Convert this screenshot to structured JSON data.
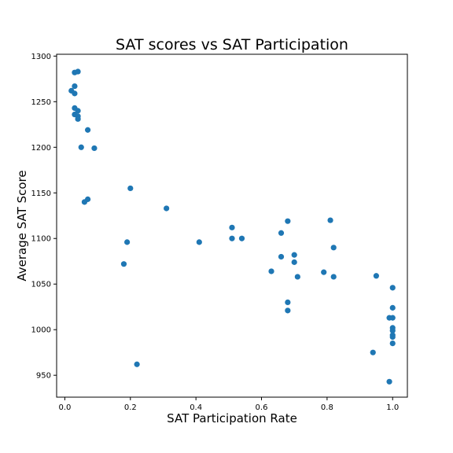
{
  "chart_data": {
    "type": "scatter",
    "title": "SAT scores vs SAT Participation",
    "xlabel": "SAT Participation Rate",
    "ylabel": "Average SAT Score",
    "xlim": [
      -0.025,
      1.045
    ],
    "ylim": [
      926,
      1302
    ],
    "xticks": [
      "0.0",
      "0.2",
      "0.4",
      "0.6",
      "0.8",
      "1.0"
    ],
    "xtick_values": [
      0.0,
      0.2,
      0.4,
      0.6,
      0.8,
      1.0
    ],
    "yticks": [
      "950",
      "1000",
      "1050",
      "1100",
      "1150",
      "1200",
      "1250",
      "1300"
    ],
    "ytick_values": [
      950,
      1000,
      1050,
      1100,
      1150,
      1200,
      1250,
      1300
    ],
    "grid": false,
    "series": [
      {
        "color": "#1f77b4",
        "points": [
          [
            0.03,
            1282
          ],
          [
            0.04,
            1283
          ],
          [
            0.02,
            1262
          ],
          [
            0.03,
            1267
          ],
          [
            0.03,
            1259
          ],
          [
            0.03,
            1243
          ],
          [
            0.04,
            1240
          ],
          [
            0.03,
            1236
          ],
          [
            0.04,
            1234
          ],
          [
            0.04,
            1231
          ],
          [
            0.07,
            1219
          ],
          [
            0.05,
            1200
          ],
          [
            0.09,
            1199
          ],
          [
            0.2,
            1155
          ],
          [
            0.07,
            1143
          ],
          [
            0.06,
            1140
          ],
          [
            0.31,
            1133
          ],
          [
            0.51,
            1112
          ],
          [
            0.51,
            1100
          ],
          [
            0.54,
            1100
          ],
          [
            0.19,
            1096
          ],
          [
            0.41,
            1096
          ],
          [
            0.18,
            1072
          ],
          [
            0.22,
            962
          ],
          [
            0.68,
            1119
          ],
          [
            0.81,
            1120
          ],
          [
            0.66,
            1106
          ],
          [
            0.82,
            1090
          ],
          [
            0.7,
            1082
          ],
          [
            0.66,
            1080
          ],
          [
            0.7,
            1074
          ],
          [
            0.63,
            1064
          ],
          [
            0.79,
            1063
          ],
          [
            0.71,
            1058
          ],
          [
            0.82,
            1058
          ],
          [
            0.95,
            1059
          ],
          [
            0.68,
            1030
          ],
          [
            0.68,
            1021
          ],
          [
            0.94,
            975
          ],
          [
            0.99,
            943
          ],
          [
            1.0,
            1046
          ],
          [
            1.0,
            1024
          ],
          [
            0.99,
            1013
          ],
          [
            1.0,
            1013
          ],
          [
            1.0,
            1002
          ],
          [
            1.0,
            999
          ],
          [
            1.0,
            994
          ],
          [
            1.0,
            992
          ],
          [
            1.0,
            985
          ]
        ]
      }
    ]
  }
}
